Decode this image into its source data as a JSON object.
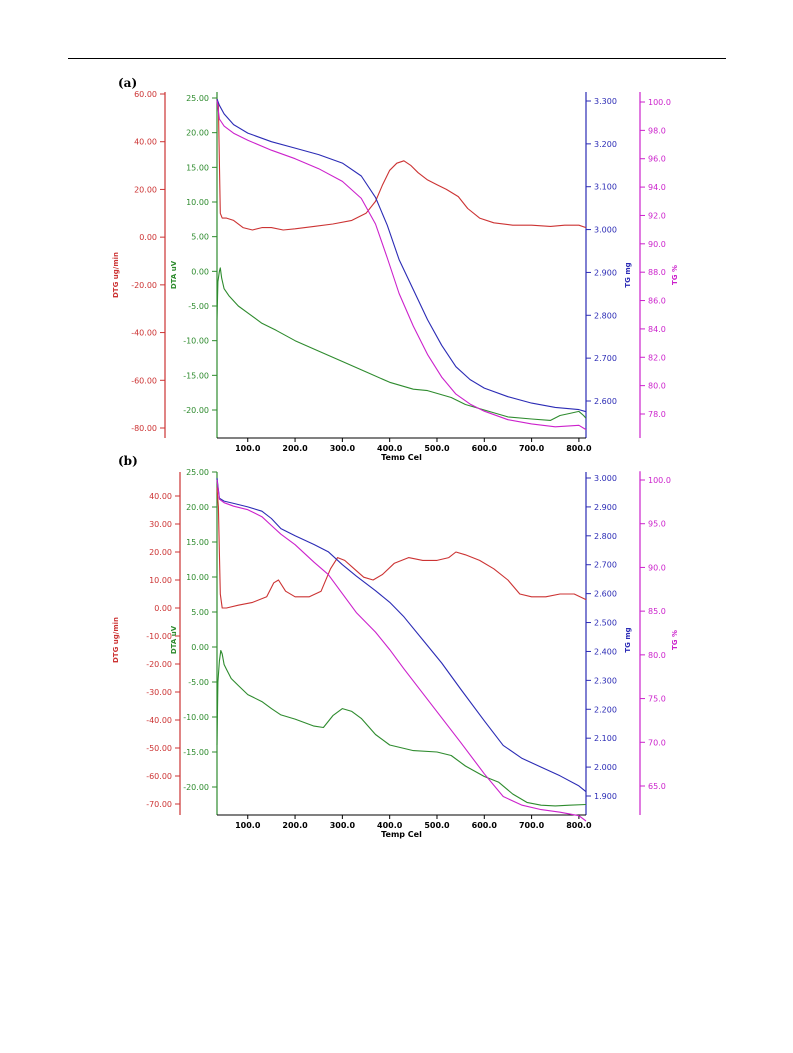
{
  "panels": [
    {
      "label": "(a)",
      "chart_data": {
        "type": "line",
        "xlabel": "Temp Cel",
        "xlim": [
          35,
          815
        ],
        "x_ticks": [
          "100.0",
          "200.0",
          "300.0",
          "400.0",
          "500.0",
          "600.0",
          "700.0",
          "800.0"
        ],
        "axes": {
          "dtg": {
            "label": "DTG ug/min",
            "color": "#cc3333",
            "lim": [
              -82,
              60
            ],
            "ticks": [
              "60.00",
              "40.00",
              "20.00",
              "0.00",
              "-20.00",
              "-40.00",
              "-60.00",
              "-80.00"
            ]
          },
          "dta": {
            "label": "DTA uV",
            "color": "#2e8b2e",
            "lim": [
              -22.5,
              25.5
            ],
            "ticks": [
              "25.00",
              "20.00",
              "15.00",
              "10.00",
              "5.00",
              "0.00",
              "-5.00",
              "-10.00",
              "-15.00",
              "-20.00"
            ]
          },
          "tgmg": {
            "label": "TG mg",
            "color": "#2b2bb5",
            "lim": [
              2.555,
              3.315
            ],
            "ticks": [
              "3.300",
              "3.200",
              "3.100",
              "3.000",
              "2.900",
              "2.800",
              "2.700",
              "2.600"
            ]
          },
          "tgpct": {
            "label": "TG %",
            "color": "#cc22cc",
            "lim": [
              76.9,
              100.6
            ],
            "ticks": [
              "100.0",
              "98.0",
              "96.0",
              "94.0",
              "92.0",
              "90.0",
              "88.0",
              "86.0",
              "84.0",
              "82.0",
              "80.0",
              "78.0"
            ]
          }
        },
        "series": [
          {
            "axis": "dtg",
            "color": "#cc3333",
            "x": [
              35,
              38,
              42,
              46,
              55,
              70,
              90,
              110,
              130,
              150,
              175,
              200,
              240,
              280,
              320,
              350,
              370,
              385,
              400,
              415,
              430,
              445,
              460,
              480,
              500,
              520,
              545,
              565,
              590,
              620,
              660,
              700,
              740,
              770,
              800,
              815
            ],
            "y": [
              58,
              55,
              10,
              8,
              8,
              7,
              4,
              3,
              4,
              4,
              3,
              3.5,
              4.5,
              5.5,
              7,
              10,
              15,
              22,
              28,
              31,
              32,
              30,
              27,
              24,
              22,
              20,
              17,
              12,
              8,
              6,
              5,
              5,
              4.5,
              5,
              5,
              4
            ]
          },
          {
            "axis": "dta",
            "color": "#2e8b2e",
            "x": [
              35,
              37,
              40,
              42,
              45,
              50,
              60,
              80,
              100,
              130,
              160,
              200,
              250,
              300,
              350,
              400,
              450,
              480,
              500,
              530,
              560,
              600,
              650,
              700,
              740,
              760,
              780,
              800,
              810,
              815
            ],
            "y": [
              -7,
              -1.5,
              0,
              0.5,
              -1,
              -2.5,
              -3.5,
              -5,
              -6,
              -7.5,
              -8.5,
              -10,
              -11.5,
              -13,
              -14.5,
              -16,
              -17,
              -17.2,
              -17.6,
              -18.2,
              -19.2,
              -20,
              -21,
              -21.3,
              -21.5,
              -20.8,
              -20.5,
              -20.2,
              -20.8,
              -21.2
            ]
          },
          {
            "axis": "tgmg",
            "color": "#2b2bb5",
            "x": [
              35,
              40,
              50,
              70,
              100,
              150,
              200,
              250,
              300,
              340,
              370,
              395,
              420,
              450,
              480,
              510,
              540,
              570,
              600,
              650,
              700,
              750,
              800,
              815
            ],
            "y": [
              3.305,
              3.29,
              3.27,
              3.245,
              3.225,
              3.205,
              3.19,
              3.175,
              3.155,
              3.125,
              3.075,
              3.01,
              2.93,
              2.86,
              2.79,
              2.73,
              2.68,
              2.65,
              2.63,
              2.61,
              2.595,
              2.585,
              2.58,
              2.575
            ]
          },
          {
            "axis": "tgpct",
            "color": "#cc22cc",
            "x": [
              35,
              40,
              50,
              70,
              100,
              150,
              200,
              250,
              300,
              340,
              370,
              395,
              420,
              450,
              480,
              510,
              540,
              570,
              600,
              650,
              700,
              750,
              800,
              815
            ],
            "y": [
              100.1,
              98.8,
              98.3,
              97.8,
              97.3,
              96.6,
              96.0,
              95.3,
              94.4,
              93.2,
              91.4,
              89.0,
              86.5,
              84.2,
              82.2,
              80.6,
              79.4,
              78.7,
              78.2,
              77.6,
              77.3,
              77.1,
              77.2,
              76.9
            ]
          }
        ]
      }
    },
    {
      "label": "(b)",
      "chart_data": {
        "type": "line",
        "xlabel": "Temp Cel",
        "xlim": [
          35,
          815
        ],
        "x_ticks": [
          "100.0",
          "200.0",
          "300.0",
          "400.0",
          "500.0",
          "600.0",
          "700.0",
          "800.0"
        ],
        "axes": {
          "dtg": {
            "label": "DTG ug/min",
            "color": "#cc3333",
            "lim": [
              -72,
              48
            ],
            "ticks": [
              "40.00",
              "30.00",
              "20.00",
              "10.00",
              "0.00",
              "-10.00",
              "-20.00",
              "-30.00",
              "-40.00",
              "-50.00",
              "-60.00",
              "-70.00"
            ]
          },
          "dta": {
            "label": "DTA uV",
            "color": "#2e8b2e",
            "lim": [
              -22.5,
              25
            ],
            "ticks": [
              "25.00",
              "20.00",
              "15.00",
              "10.00",
              "5.00",
              "0.00",
              "-5.00",
              "-10.00",
              "-15.00",
              "-20.00"
            ]
          },
          "tgmg": {
            "label": "TG mg",
            "color": "#2b2bb5",
            "lim": [
              1.865,
              3.02
            ],
            "ticks": [
              "3.000",
              "2.900",
              "2.800",
              "2.700",
              "2.600",
              "2.500",
              "2.400",
              "2.300",
              "2.200",
              "2.100",
              "2.000",
              "1.900"
            ]
          },
          "tgpct": {
            "label": "TG %",
            "color": "#cc22cc",
            "lim": [
              62,
              101
            ],
            "ticks": [
              "100.0",
              "95.0",
              "90.0",
              "85.0",
              "80.0",
              "75.0",
              "70.0",
              "65.0"
            ]
          }
        },
        "series": [
          {
            "axis": "dtg",
            "color": "#cc3333",
            "x": [
              35,
              38,
              42,
              46,
              55,
              80,
              110,
              140,
              155,
              165,
              180,
              200,
              230,
              255,
              275,
              290,
              305,
              325,
              345,
              365,
              385,
              410,
              440,
              470,
              500,
              525,
              540,
              560,
              590,
              620,
              650,
              675,
              700,
              730,
              760,
              790,
              815
            ],
            "y": [
              43,
              36,
              5,
              0,
              0,
              1,
              2,
              4,
              9,
              10,
              6,
              4,
              4,
              6,
              14,
              18,
              17,
              14,
              11,
              10,
              12,
              16,
              18,
              17,
              17,
              18,
              20,
              19,
              17,
              14,
              10,
              5,
              4,
              4,
              5,
              5,
              3
            ]
          },
          {
            "axis": "dta",
            "color": "#2e8b2e",
            "x": [
              35,
              37,
              40,
              43,
              46,
              50,
              55,
              65,
              80,
              100,
              130,
              150,
              170,
              200,
              240,
              260,
              280,
              300,
              320,
              340,
              370,
              400,
              450,
              500,
              530,
              560,
              600,
              630,
              660,
              690,
              720,
              750,
              780,
              815
            ],
            "y": [
              -14,
              -5,
              -2,
              -0.5,
              -1,
              -2.5,
              -3.2,
              -4.5,
              -5.5,
              -6.8,
              -7.8,
              -8.8,
              -9.7,
              -10.3,
              -11.3,
              -11.5,
              -9.8,
              -8.8,
              -9.2,
              -10.2,
              -12.5,
              -14,
              -14.8,
              -15,
              -15.5,
              -17,
              -18.5,
              -19.3,
              -21,
              -22.2,
              -22.6,
              -22.7,
              -22.6,
              -22.5
            ]
          },
          {
            "axis": "tgmg",
            "color": "#2b2bb5",
            "x": [
              35,
              40,
              50,
              70,
              100,
              130,
              150,
              170,
              200,
              240,
              270,
              300,
              330,
              370,
              400,
              430,
              470,
              510,
              550,
              600,
              640,
              680,
              720,
              760,
              800,
              815
            ],
            "y": [
              3.0,
              2.93,
              2.92,
              2.912,
              2.9,
              2.885,
              2.86,
              2.825,
              2.8,
              2.77,
              2.745,
              2.7,
              2.66,
              2.61,
              2.57,
              2.52,
              2.44,
              2.36,
              2.27,
              2.16,
              2.075,
              2.03,
              2.0,
              1.97,
              1.935,
              1.915
            ]
          },
          {
            "axis": "tgpct",
            "color": "#cc22cc",
            "x": [
              35,
              40,
              50,
              70,
              100,
              130,
              150,
              170,
              200,
              240,
              270,
              300,
              330,
              370,
              400,
              430,
              470,
              510,
              550,
              600,
              640,
              680,
              720,
              760,
              800,
              815
            ],
            "y": [
              100,
              97.8,
              97.4,
              97.0,
              96.6,
              95.8,
              94.8,
              93.8,
              92.6,
              90.6,
              89.2,
              87.0,
              84.8,
              82.6,
              80.6,
              78.4,
              75.6,
              72.8,
              70.0,
              66.4,
              63.8,
              62.8,
              62.3,
              62.0,
              61.6,
              61.0
            ]
          }
        ]
      }
    }
  ]
}
